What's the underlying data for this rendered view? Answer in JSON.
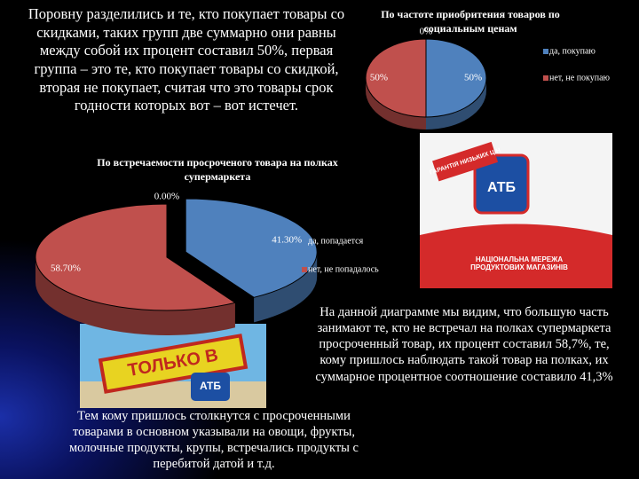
{
  "texts": {
    "top_left": "Поровну разделились и те, кто покупает товары со скидками, таких групп две суммарно они равны между собой их процент составил 50%, первая группа – это те, кто покупает товары со скидкой, вторая не покупает, считая что это товары срок годности которых вот – вот истечет.",
    "right": "На данной диаграмме мы видим, что большую часть занимают те, кто не встречал на полках супермаркета просроченный товар, их процент составил 58,7%, те, кому пришлось наблюдать такой товар на полках, их суммарное процентное соотношение составило 41,3%",
    "bottom_left": "Тем кому пришлось столкнутся с просроченными товарами в основном указывали на овощи, фрукты, молочные продукты, крупы, встречались продукты с перебитой датой и т.д."
  },
  "images": [
    {
      "texts": [
        "ГАРАНТІЯ НИЗЬКИХ ЦІН",
        "АТБ",
        "НАЦІОНАЛЬНА МЕРЕЖА ПРОДУКТОВИХ МАГАЗИНІВ"
      ]
    },
    {
      "texts": [
        "ТОЛЬКО В",
        "АТБ"
      ]
    }
  ],
  "chart_data": [
    {
      "type": "pie",
      "title": "По частоте приобритения товаров по социальным ценам",
      "categories": [
        "да, покупаю",
        "нет, не покупаю",
        null
      ],
      "values": [
        50,
        50,
        0
      ],
      "value_labels": [
        "50%",
        "50%",
        "0%"
      ],
      "colors": [
        "#4f81bd",
        "#c0504d",
        "#9bbb59"
      ]
    },
    {
      "type": "pie",
      "title": "По встречаемости просроченого товара на полках супермаркета",
      "categories": [
        "да, попадается",
        "нет, не попадалось",
        null
      ],
      "values": [
        41.3,
        58.7,
        0
      ],
      "value_labels": [
        "41.30%",
        "58.70%",
        "0.00%"
      ],
      "colors": [
        "#4f81bd",
        "#c0504d",
        "#9bbb59"
      ]
    }
  ]
}
